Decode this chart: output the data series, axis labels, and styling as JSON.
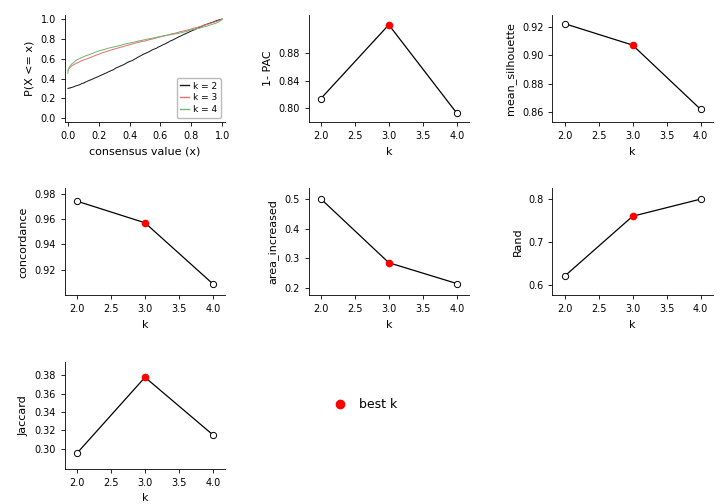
{
  "ecdf": {
    "k2_color": "#1a1a1a",
    "k3_color": "#e87070",
    "k4_color": "#70b870",
    "xlabel": "consensus value (x)",
    "ylabel": "P(X <= x)",
    "legend_labels": [
      "k = 2",
      "k = 3",
      "k = 4"
    ],
    "xlim": [
      -0.02,
      1.02
    ],
    "ylim": [
      -0.04,
      1.04
    ],
    "xticks": [
      0.0,
      0.2,
      0.4,
      0.6,
      0.8,
      1.0
    ],
    "yticks": [
      0.0,
      0.2,
      0.4,
      0.6,
      0.8,
      1.0
    ]
  },
  "pac": {
    "k": [
      2.0,
      3.0,
      4.0
    ],
    "values": [
      0.814,
      0.921,
      0.793
    ],
    "best_k": 3,
    "ylabel": "1- PAC",
    "yticks": [
      0.8,
      0.84,
      0.88
    ],
    "ylim": [
      0.78,
      0.935
    ]
  },
  "silhouette": {
    "k": [
      2.0,
      3.0,
      4.0
    ],
    "values": [
      0.922,
      0.907,
      0.862
    ],
    "best_k": 3,
    "ylabel": "mean_silhouette",
    "yticks": [
      0.86,
      0.88,
      0.9,
      0.92
    ],
    "ylim": [
      0.853,
      0.928
    ]
  },
  "concordance": {
    "k": [
      2.0,
      3.0,
      4.0
    ],
    "values": [
      0.974,
      0.957,
      0.909
    ],
    "best_k": 3,
    "ylabel": "concordance",
    "yticks": [
      0.92,
      0.94,
      0.96,
      0.98
    ],
    "ylim": [
      0.9,
      0.984
    ]
  },
  "area_increased": {
    "k": [
      2.0,
      3.0,
      4.0
    ],
    "values": [
      0.5,
      0.285,
      0.215
    ],
    "best_k": 3,
    "ylabel": "area_increased",
    "yticks": [
      0.2,
      0.3,
      0.4,
      0.5
    ],
    "ylim": [
      0.175,
      0.535
    ]
  },
  "rand": {
    "k": [
      2.0,
      3.0,
      4.0
    ],
    "values": [
      0.62,
      0.76,
      0.8
    ],
    "best_k": 3,
    "ylabel": "Rand",
    "yticks": [
      0.6,
      0.7,
      0.8
    ],
    "ylim": [
      0.575,
      0.825
    ]
  },
  "jaccard": {
    "k": [
      2.0,
      3.0,
      4.0
    ],
    "values": [
      0.295,
      0.378,
      0.315
    ],
    "best_k": 3,
    "ylabel": "Jaccard",
    "yticks": [
      0.3,
      0.32,
      0.34,
      0.36,
      0.38
    ],
    "ylim": [
      0.278,
      0.395
    ]
  },
  "common": {
    "xlabel": "k",
    "xticks": [
      2.0,
      2.5,
      3.0,
      3.5,
      4.0
    ],
    "xlim": [
      1.82,
      4.18
    ],
    "open_circle_color": "white",
    "open_circle_edgecolor": "black",
    "best_marker_color": "red",
    "line_color": "black",
    "bg_color": "white",
    "fontsize": 8,
    "tick_fontsize": 7
  }
}
